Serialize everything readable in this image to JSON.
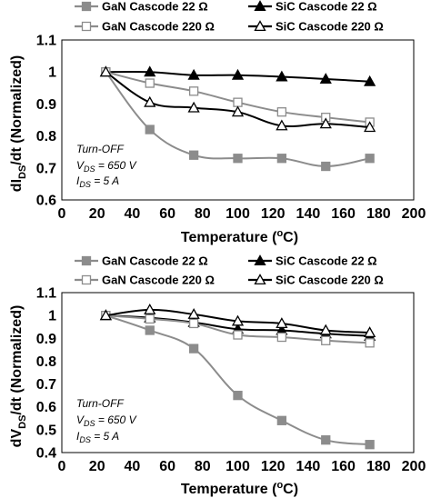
{
  "colors": {
    "gan22": "#8c8c8c",
    "sic22": "#000000",
    "gan220": "#8c8c8c",
    "sic220": "#000000"
  },
  "chart_data": [
    {
      "type": "line",
      "ylabel": "dIDS/dt (Normalized)",
      "ylabel_main": "dI",
      "ylabel_sub": "DS",
      "ylabel_rest": "/dt (Normalized)",
      "xlabel": "Temperature (°C)",
      "xlabel_main": "Temperature (",
      "xlabel_sup": "o",
      "xlabel_rest": "C)",
      "xlim": [
        0,
        200
      ],
      "ylim": [
        0.6,
        1.1
      ],
      "xticks": [
        "0",
        "20",
        "40",
        "60",
        "80",
        "100",
        "120",
        "140",
        "160",
        "180",
        "200"
      ],
      "yticks": [
        "0.6",
        "0.7",
        "0.8",
        "0.9",
        "1",
        "1.1"
      ],
      "grid": false,
      "legend_position": "top",
      "annotation": {
        "line1": "Turn-OFF",
        "line2_main": "V",
        "line2_sub": "DS",
        "line2_rest": " = 650 V",
        "line3_main": "I",
        "line3_sub": "DS",
        "line3_rest": " = 5 A"
      },
      "x": [
        25,
        50,
        75,
        100,
        125,
        150,
        175
      ],
      "series": [
        {
          "name": "GaN Cascode 22 Ω",
          "marker": "square-filled",
          "values": [
            1.0,
            0.82,
            0.74,
            0.73,
            0.73,
            0.705,
            0.73
          ]
        },
        {
          "name": "SiC Cascode 22 Ω",
          "marker": "triangle-filled",
          "values": [
            1.0,
            1.0,
            0.99,
            0.99,
            0.985,
            0.978,
            0.97
          ]
        },
        {
          "name": "GaN Cascode 220 Ω",
          "marker": "square-open",
          "values": [
            1.0,
            0.965,
            0.94,
            0.905,
            0.875,
            0.858,
            0.843
          ]
        },
        {
          "name": "SiC Cascode 220 Ω",
          "marker": "triangle-open",
          "values": [
            1.0,
            0.905,
            0.888,
            0.875,
            0.832,
            0.838,
            0.827
          ]
        }
      ]
    },
    {
      "type": "line",
      "ylabel": "dVDS/dt (Normalized)",
      "ylabel_main": "dV",
      "ylabel_sub": "DS",
      "ylabel_rest": "/dt (Normalized)",
      "xlabel": "Temperature (°C)",
      "xlabel_main": "Temperature (",
      "xlabel_sup": "o",
      "xlabel_rest": "C)",
      "xlim": [
        0,
        200
      ],
      "ylim": [
        0.4,
        1.1
      ],
      "xticks": [
        "0",
        "20",
        "40",
        "60",
        "80",
        "100",
        "120",
        "140",
        "160",
        "180",
        "200"
      ],
      "yticks": [
        "0.4",
        "0.5",
        "0.6",
        "0.7",
        "0.8",
        "0.9",
        "1",
        "1.1"
      ],
      "grid": false,
      "legend_position": "top",
      "annotation": {
        "line1": "Turn-OFF",
        "line2_main": "V",
        "line2_sub": "DS",
        "line2_rest": " = 650 V",
        "line3_main": "I",
        "line3_sub": "DS",
        "line3_rest": " = 5 A"
      },
      "x": [
        25,
        50,
        75,
        100,
        125,
        150,
        175
      ],
      "series": [
        {
          "name": "GaN Cascode 22 Ω",
          "marker": "square-filled",
          "values": [
            1.0,
            0.935,
            0.855,
            0.65,
            0.54,
            0.455,
            0.435
          ]
        },
        {
          "name": "SiC Cascode 22 Ω",
          "marker": "triangle-filled",
          "values": [
            1.0,
            0.99,
            0.97,
            0.94,
            0.935,
            0.92,
            0.91
          ]
        },
        {
          "name": "GaN Cascode 220 Ω",
          "marker": "square-open",
          "values": [
            1.0,
            0.985,
            0.965,
            0.915,
            0.905,
            0.89,
            0.88
          ]
        },
        {
          "name": "SiC Cascode 220 Ω",
          "marker": "triangle-open",
          "values": [
            1.0,
            1.025,
            1.005,
            0.975,
            0.965,
            0.935,
            0.925
          ]
        }
      ]
    }
  ]
}
